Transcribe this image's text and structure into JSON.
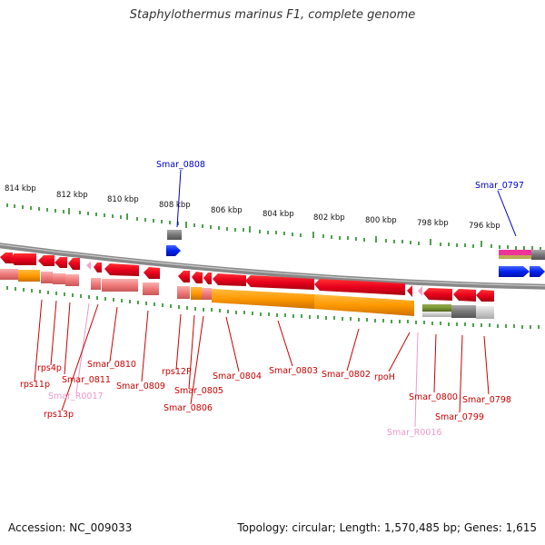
{
  "title": "Staphylothermus marinus F1, complete genome",
  "footer": {
    "accession": "Accession: NC_009033",
    "topology": "Topology: circular; Length: 1,570,485 bp; Genes: 1,615"
  },
  "ruler": {
    "labels": [
      "814 kbp",
      "812 kbp",
      "810 kbp",
      "808 kbp",
      "806 kbp",
      "804 kbp",
      "802 kbp",
      "800 kbp",
      "798 kbp",
      "796 kbp"
    ]
  },
  "blue_labels": [
    "Smar_0808",
    "Smar_0797"
  ],
  "gene_labels": [
    "rps11p",
    "rps4p",
    "Smar_0811",
    "Smar_0810",
    "Smar_R0017",
    "rps13p",
    "Smar_0809",
    "rps12P",
    "Smar_0805",
    "Smar_0806",
    "Smar_0804",
    "Smar_0803",
    "Smar_0802",
    "rpoH",
    "Smar_R0016",
    "Smar_0800",
    "Smar_0799",
    "Smar_0798"
  ],
  "colors": {
    "gene_red": "#e8001c",
    "gene_pink": "#f08080",
    "cds_orange": "#ff9900",
    "rna_pink": "#ee99cc",
    "blue": "#0033ff",
    "ruler_green": "#228822",
    "label_red": "#cc0000",
    "backbone_gray": "#888888"
  }
}
